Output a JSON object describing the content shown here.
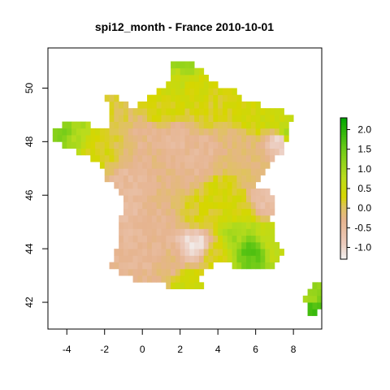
{
  "chart_data": {
    "type": "heatmap",
    "title": "spi12_month - France 2010-10-01",
    "xlabel": "",
    "ylabel": "",
    "xlim": [
      -5,
      9.5
    ],
    "ylim": [
      41.0,
      51.5
    ],
    "x_ticks": [
      -4,
      -2,
      0,
      2,
      4,
      6,
      8
    ],
    "x_tick_labels": [
      "-4",
      "-2",
      "0",
      "2",
      "4",
      "6",
      "8"
    ],
    "y_ticks": [
      42,
      44,
      46,
      48,
      50
    ],
    "y_tick_labels": [
      "42",
      "44",
      "46",
      "48",
      "50"
    ],
    "grid": false,
    "cell_size_deg": 0.25,
    "value_range": [
      -1.3,
      2.3
    ],
    "colorbar": {
      "position": "right",
      "ticks": [
        -1.0,
        -0.5,
        0.0,
        0.5,
        1.0,
        1.5,
        2.0
      ],
      "tick_labels": [
        "-1.0",
        "-0.5",
        "0.0",
        "0.5",
        "1.0",
        "1.5",
        "2.0"
      ],
      "color_stops": [
        {
          "value": -1.3,
          "color": "#f2f2f2"
        },
        {
          "value": -0.9,
          "color": "#eccbbd"
        },
        {
          "value": -0.3,
          "color": "#e6b48f"
        },
        {
          "value": 0.05,
          "color": "#dfc45a"
        },
        {
          "value": 0.3,
          "color": "#d7d600"
        },
        {
          "value": 0.8,
          "color": "#b9dc1d"
        },
        {
          "value": 1.5,
          "color": "#6fcb18"
        },
        {
          "value": 2.3,
          "color": "#00a600"
        }
      ]
    },
    "region_summary": [
      {
        "lon": 2.2,
        "lat": 50.85,
        "value": 1.1
      },
      {
        "lon": 2.0,
        "lat": 50.4,
        "value": 0.6
      },
      {
        "lon": 2.8,
        "lat": 50.0,
        "value": 0.4
      },
      {
        "lon": 1.0,
        "lat": 49.3,
        "value": 0.3
      },
      {
        "lon": 3.5,
        "lat": 49.3,
        "value": 0.25
      },
      {
        "lon": 5.5,
        "lat": 49.0,
        "value": 0.35
      },
      {
        "lon": 6.8,
        "lat": 48.9,
        "value": 0.5
      },
      {
        "lon": 7.6,
        "lat": 48.3,
        "value": 0.9
      },
      {
        "lon": 7.3,
        "lat": 48.0,
        "value": -1.0
      },
      {
        "lon": -4.2,
        "lat": 48.4,
        "value": 1.3
      },
      {
        "lon": -3.5,
        "lat": 48.2,
        "value": 0.9
      },
      {
        "lon": -2.5,
        "lat": 47.8,
        "value": 0.3
      },
      {
        "lon": -1.5,
        "lat": 48.4,
        "value": 0.1
      },
      {
        "lon": 0.0,
        "lat": 48.2,
        "value": -0.3
      },
      {
        "lon": 1.7,
        "lat": 48.0,
        "value": -0.45
      },
      {
        "lon": 3.2,
        "lat": 47.6,
        "value": -0.4
      },
      {
        "lon": 2.5,
        "lat": 47.0,
        "value": -0.35
      },
      {
        "lon": 5.0,
        "lat": 47.8,
        "value": -0.2
      },
      {
        "lon": 6.0,
        "lat": 47.0,
        "value": -0.1
      },
      {
        "lon": 6.5,
        "lat": 45.9,
        "value": -0.6
      },
      {
        "lon": 4.0,
        "lat": 46.0,
        "value": 0.35
      },
      {
        "lon": 5.0,
        "lat": 45.6,
        "value": 0.3
      },
      {
        "lon": 3.0,
        "lat": 45.3,
        "value": 0.2
      },
      {
        "lon": 1.2,
        "lat": 46.8,
        "value": -0.25
      },
      {
        "lon": -0.5,
        "lat": 46.5,
        "value": -0.45
      },
      {
        "lon": -1.0,
        "lat": 45.0,
        "value": -0.5
      },
      {
        "lon": 0.5,
        "lat": 44.7,
        "value": -0.35
      },
      {
        "lon": 2.8,
        "lat": 44.1,
        "value": -1.1
      },
      {
        "lon": 1.6,
        "lat": 43.5,
        "value": -0.25
      },
      {
        "lon": -0.5,
        "lat": 43.6,
        "value": -0.4
      },
      {
        "lon": 3.8,
        "lat": 43.7,
        "value": 0.2
      },
      {
        "lon": 5.8,
        "lat": 43.9,
        "value": 1.6
      },
      {
        "lon": 5.0,
        "lat": 44.5,
        "value": 1.0
      },
      {
        "lon": 6.9,
        "lat": 44.3,
        "value": 0.6
      },
      {
        "lon": 7.2,
        "lat": 43.9,
        "value": 0.7
      },
      {
        "lon": 2.5,
        "lat": 42.7,
        "value": 0.5
      },
      {
        "lon": 9.2,
        "lat": 42.5,
        "value": 1.2
      },
      {
        "lon": 9.0,
        "lat": 41.8,
        "value": 1.8
      },
      {
        "lon": 8.8,
        "lat": 42.1,
        "value": 1.0
      }
    ]
  }
}
